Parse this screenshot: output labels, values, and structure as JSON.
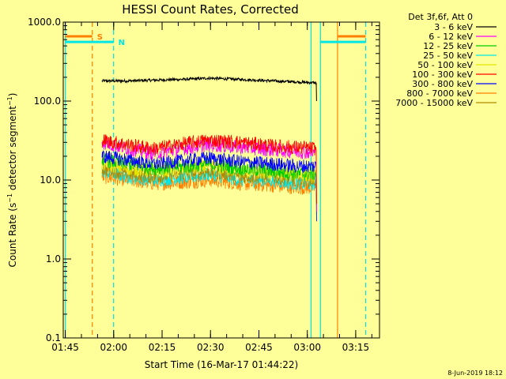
{
  "chart_data": {
    "type": "line",
    "title": "HESSI Count Rates, Corrected",
    "xlabel": "Start Time (16-Mar-17 01:44:22)",
    "ylabel": "Count Rate (s⁻¹ detector segment⁻¹)",
    "ylabel_parts": {
      "a": "Count Rate (s",
      "sup1": "−1",
      "b": " detector segment",
      "sup2": "−1",
      "c": ")"
    },
    "y_scale": "log",
    "ylim": [
      0.1,
      1000
    ],
    "y_ticks": [
      {
        "value": 0.1,
        "label": "0.1"
      },
      {
        "value": 1,
        "label": "1.0"
      },
      {
        "value": 10,
        "label": "10.0"
      },
      {
        "value": 100,
        "label": "100.0"
      },
      {
        "value": 1000,
        "label": "1000.0"
      }
    ],
    "x_unit": "minutes after 01:44:22",
    "xlim": [
      0,
      98
    ],
    "x_ticks": [
      {
        "value": 0.63,
        "label": "01:45"
      },
      {
        "value": 15.63,
        "label": "02:00"
      },
      {
        "value": 30.63,
        "label": "02:15"
      },
      {
        "value": 45.63,
        "label": "02:30"
      },
      {
        "value": 60.63,
        "label": "02:45"
      },
      {
        "value": 75.63,
        "label": "03:00"
      },
      {
        "value": 90.63,
        "label": "03:15"
      }
    ],
    "legend_header": "Det 3f,6f, Att 0",
    "legend_position": "right",
    "series": [
      {
        "name": "3 - 6 keV",
        "color": "#000000",
        "t": [
          12.0,
          20.0,
          30.0,
          40.0,
          45.0,
          55.0,
          65.0,
          72.0,
          78.5
        ],
        "y": [
          180,
          180,
          185,
          190,
          195,
          188,
          180,
          175,
          170
        ]
      },
      {
        "name": "6 - 12 keV",
        "color": "#ff00ff",
        "t": [
          12.0,
          20.0,
          28.0,
          40.0,
          45.0,
          55.0,
          65.0,
          72.0,
          78.5
        ],
        "y": [
          30,
          25,
          22,
          26,
          28,
          26,
          24,
          23,
          22
        ]
      },
      {
        "name": "12 - 25 keV",
        "color": "#00cc00",
        "t": [
          12.0,
          20.0,
          28.0,
          40.0,
          45.0,
          55.0,
          65.0,
          72.0,
          78.5
        ],
        "y": [
          18,
          16,
          14,
          15,
          16,
          14,
          13,
          12,
          12
        ]
      },
      {
        "name": "25 - 50 keV",
        "color": "#00e5e5",
        "t": [
          12.0,
          20.0,
          28.0,
          40.0,
          45.0,
          55.0,
          65.0,
          72.0,
          78.5
        ],
        "y": [
          13,
          11,
          10,
          11,
          12,
          10,
          10,
          9,
          9
        ]
      },
      {
        "name": "50 - 100 keV",
        "color": "#e5e500",
        "t": [
          12.0,
          20.0,
          28.0,
          40.0,
          45.0,
          55.0,
          65.0,
          72.0,
          78.5
        ],
        "y": [
          16,
          14,
          13,
          14,
          15,
          13,
          12,
          12,
          11
        ]
      },
      {
        "name": "100 - 300 keV",
        "color": "#ff0000",
        "t": [
          12.0,
          20.0,
          28.0,
          40.0,
          45.0,
          55.0,
          65.0,
          72.0,
          78.5
        ],
        "y": [
          32,
          28,
          25,
          30,
          32,
          30,
          27,
          26,
          25
        ]
      },
      {
        "name": "300 - 800 keV",
        "color": "#0000ff",
        "t": [
          12.0,
          20.0,
          28.0,
          40.0,
          45.0,
          55.0,
          65.0,
          72.0,
          78.5
        ],
        "y": [
          20,
          18,
          16,
          18,
          19,
          17,
          16,
          15,
          15
        ]
      },
      {
        "name": "800 - 7000 keV",
        "color": "#ff7f00",
        "t": [
          12.0,
          20.0,
          28.0,
          40.0,
          45.0,
          55.0,
          65.0,
          72.0,
          78.5
        ],
        "y": [
          11,
          10,
          9,
          9.5,
          10,
          9,
          8.5,
          8,
          8
        ]
      },
      {
        "name": "7000 - 15000 keV",
        "color": "#b08a00",
        "t": [
          12.0,
          20.0,
          28.0,
          40.0,
          45.0,
          55.0,
          65.0,
          72.0,
          78.5
        ],
        "y": [
          14,
          12,
          11,
          12,
          13,
          11,
          11,
          10,
          10
        ]
      }
    ],
    "vertical_lines": [
      {
        "t": 0.63,
        "color": "#00e5e5",
        "style": "solid"
      },
      {
        "t": 9.0,
        "color": "#ff7f00",
        "style": "dashed"
      },
      {
        "t": 15.6,
        "color": "#00e5e5",
        "style": "dashed"
      },
      {
        "t": 76.8,
        "color": "#00e5e5",
        "style": "solid"
      },
      {
        "t": 79.7,
        "color": "#00e5e5",
        "style": "solid"
      },
      {
        "t": 85.0,
        "color": "#ff7f00",
        "style": "solid"
      },
      {
        "t": 93.7,
        "color": "#00e5e5",
        "style": "dashed"
      }
    ],
    "horizontal_bars": [
      {
        "t0": 0.63,
        "t1": 9.0,
        "y": 660,
        "color": "#ff7f00",
        "label": "S"
      },
      {
        "t0": 0.63,
        "t1": 15.6,
        "y": 560,
        "color": "#00e5e5",
        "label": "N"
      },
      {
        "t0": 85.0,
        "t1": 93.7,
        "y": 660,
        "color": "#ff7f00",
        "label": ""
      },
      {
        "t0": 79.7,
        "t1": 93.7,
        "y": 560,
        "color": "#00e5e5",
        "label": ""
      }
    ]
  },
  "timestamp": "8-Jun-2019 18:12"
}
